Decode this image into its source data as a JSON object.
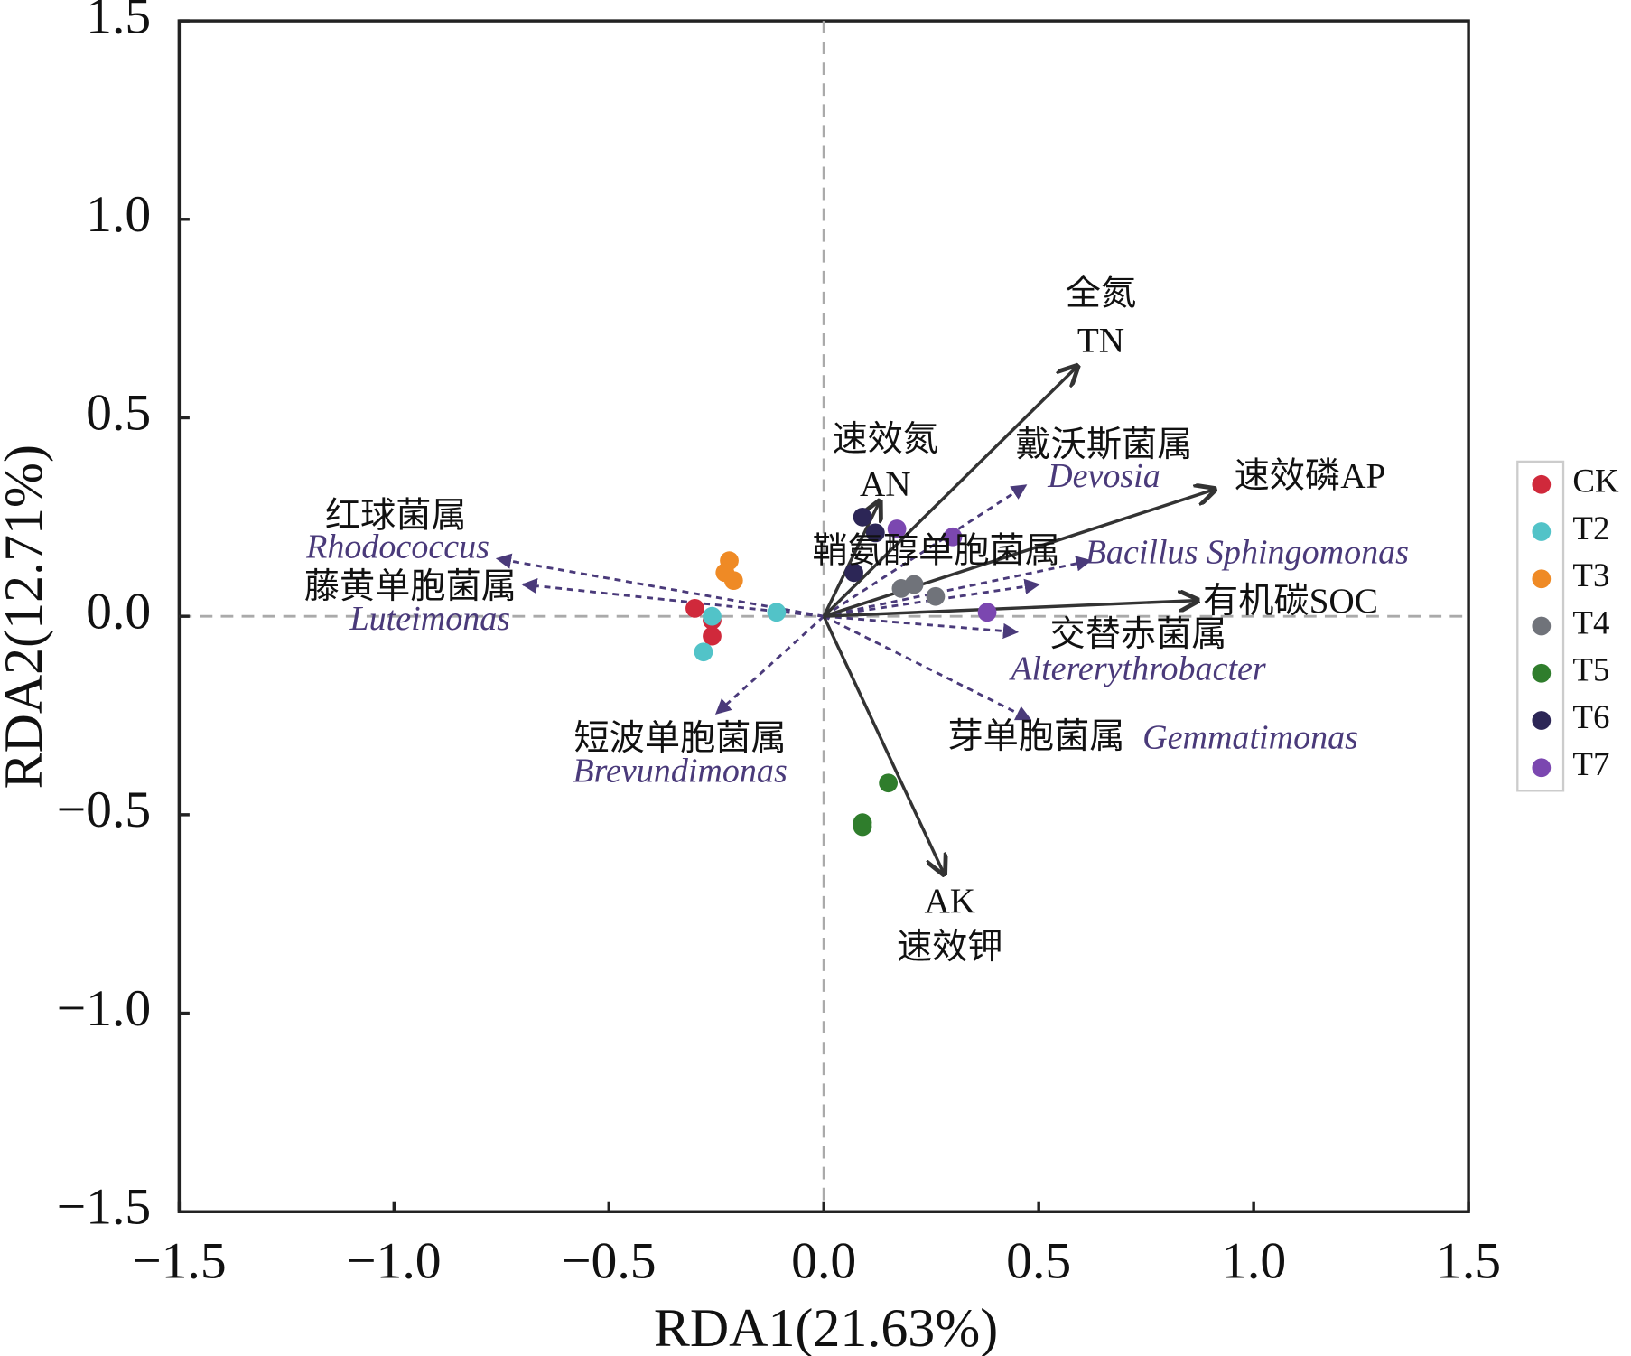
{
  "chart_data": {
    "type": "scatter",
    "title": "",
    "xlabel": "RDA1(21.63%)",
    "ylabel": "RDA2(12.71%)",
    "xlim": [
      -1.5,
      1.5
    ],
    "ylim": [
      -1.5,
      1.5
    ],
    "xticks": [
      "−1.5",
      "−1.0",
      "−0.5",
      "0.0",
      "0.5",
      "1.0",
      "1.5"
    ],
    "xtick_values": [
      -1.5,
      -1.0,
      -0.5,
      0.0,
      0.5,
      1.0,
      1.5
    ],
    "yticks": [
      "1.5",
      "1.0",
      "0.5",
      "0.0",
      "−0.5",
      "−1.0",
      "−1.5"
    ],
    "ytick_values": [
      1.5,
      1.0,
      0.5,
      0.0,
      -0.5,
      -1.0,
      -1.5
    ],
    "legend_position": "right",
    "series": [
      {
        "name": "CK",
        "color": "#d0293b",
        "points": [
          [
            -0.3,
            0.02
          ],
          [
            -0.26,
            -0.01
          ],
          [
            -0.26,
            -0.05
          ]
        ]
      },
      {
        "name": "T2",
        "color": "#52c3c8",
        "points": [
          [
            -0.26,
            0.0
          ],
          [
            -0.28,
            -0.09
          ],
          [
            -0.11,
            0.01
          ]
        ]
      },
      {
        "name": "T3",
        "color": "#ef8a25",
        "points": [
          [
            -0.22,
            0.14
          ],
          [
            -0.23,
            0.11
          ],
          [
            -0.21,
            0.09
          ]
        ]
      },
      {
        "name": "T4",
        "color": "#70737a",
        "points": [
          [
            0.18,
            0.07
          ],
          [
            0.21,
            0.08
          ],
          [
            0.26,
            0.05
          ]
        ]
      },
      {
        "name": "T5",
        "color": "#2f7d2c",
        "points": [
          [
            0.15,
            -0.42
          ],
          [
            0.09,
            -0.52
          ],
          [
            0.09,
            -0.53
          ]
        ]
      },
      {
        "name": "T6",
        "color": "#2c2656",
        "points": [
          [
            0.09,
            0.25
          ],
          [
            0.12,
            0.21
          ],
          [
            0.07,
            0.11
          ]
        ]
      },
      {
        "name": "T7",
        "color": "#7b47b0",
        "points": [
          [
            0.17,
            0.22
          ],
          [
            0.3,
            0.2
          ],
          [
            0.38,
            0.01
          ]
        ]
      }
    ],
    "env_vectors": [
      {
        "id": "TN",
        "cn": "全氮",
        "en": "TN",
        "x": 0.59,
        "y": 0.63
      },
      {
        "id": "AN",
        "cn": "速效氮",
        "en": "AN",
        "x": 0.13,
        "y": 0.29
      },
      {
        "id": "AP",
        "label": "速效磷AP",
        "x": 0.91,
        "y": 0.32
      },
      {
        "id": "SOC",
        "label": "有机碳SOC",
        "x": 0.87,
        "y": 0.04
      },
      {
        "id": "AK",
        "cn": "速效钾",
        "en": "AK",
        "x": 0.28,
        "y": -0.65
      }
    ],
    "genus_vectors": [
      {
        "id": "rhodococcus",
        "cn": "红球菌属",
        "en": "Rhodococcus",
        "x": -0.76,
        "y": 0.145
      },
      {
        "id": "luteimonas",
        "cn": "藤黄单胞菌属",
        "en": "Luteimonas",
        "x": -0.7,
        "y": 0.08
      },
      {
        "id": "brevundimonas",
        "cn": "短波单胞菌属",
        "en": "Brevundimonas",
        "x": -0.25,
        "y": -0.245
      },
      {
        "id": "devosia",
        "cn": "戴沃斯菌属",
        "en": "Devosia",
        "x": 0.47,
        "y": 0.33
      },
      {
        "id": "sphingomonas",
        "cn": "鞘氨醇单胞菌属",
        "en": "Bacillus Sphingomonas",
        "x": 0.62,
        "y": 0.14
      },
      {
        "id": "bacillus",
        "x": 0.5,
        "y": 0.08
      },
      {
        "id": "altererythrobacter",
        "cn": "交替赤菌属",
        "en": "Altererythrobacter",
        "x": 0.45,
        "y": -0.04
      },
      {
        "id": "gemmatimonas",
        "cn": "芽单胞菌属",
        "en": "Gemmatimonas",
        "x": 0.48,
        "y": -0.26
      }
    ]
  }
}
